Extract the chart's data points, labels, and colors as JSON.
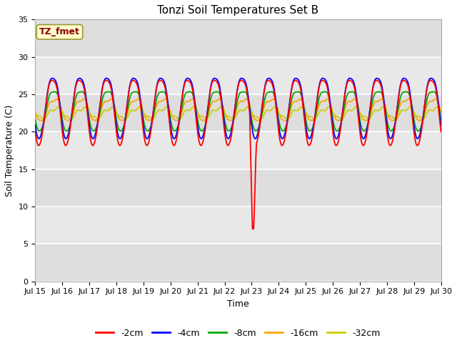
{
  "title": "Tonzi Soil Temperatures Set B",
  "xlabel": "Time",
  "ylabel": "Soil Temperature (C)",
  "xlim": [
    0,
    15
  ],
  "ylim": [
    0,
    35
  ],
  "yticks": [
    0,
    5,
    10,
    15,
    20,
    25,
    30,
    35
  ],
  "xtick_labels": [
    "Jul 15",
    "Jul 16",
    "Jul 17",
    "Jul 18",
    "Jul 19",
    "Jul 20",
    "Jul 21",
    "Jul 22",
    "Jul 23",
    "Jul 24",
    "Jul 25",
    "Jul 26",
    "Jul 27",
    "Jul 28",
    "Jul 29",
    "Jul 30"
  ],
  "annotation_text": "TZ_fmet",
  "annotation_color": "#8B0000",
  "annotation_bg": "#FFFFCC",
  "fig_bg": "#FFFFFF",
  "plot_bg": "#E8E8E8",
  "grid_color": "#FFFFFF",
  "colors": {
    "2cm": "#FF0000",
    "4cm": "#0000FF",
    "8cm": "#00AA00",
    "16cm": "#FFA500",
    "32cm": "#CCCC00"
  },
  "legend_colors": [
    "#FF0000",
    "#0000FF",
    "#00AA00",
    "#FFA500",
    "#CCCC00"
  ],
  "legend_labels": [
    "-2cm",
    "-4cm",
    "-8cm",
    "-16cm",
    "-32cm"
  ]
}
